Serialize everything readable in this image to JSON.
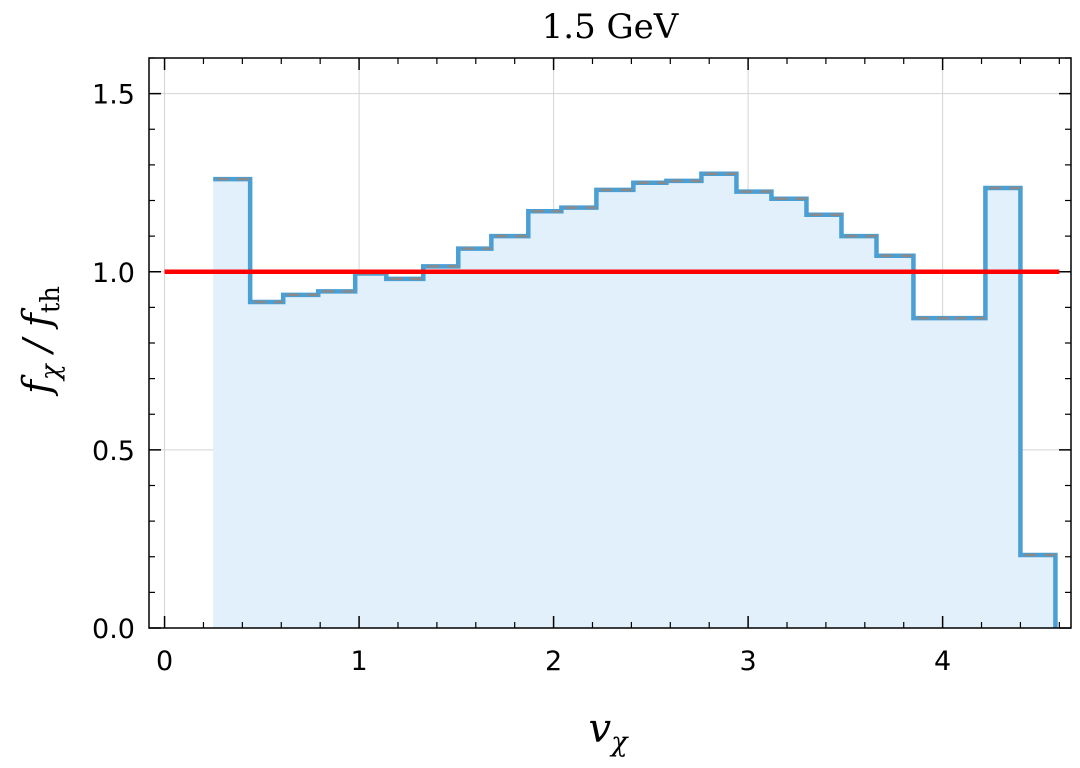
{
  "chart_data": {
    "type": "line",
    "title": "1.5 GeV",
    "xlabel": "v_χ",
    "ylabel": "f_χ / f_th",
    "xlim": [
      -0.08,
      4.66
    ],
    "ylim": [
      0.0,
      1.6
    ],
    "x_major_ticks": [
      0,
      1,
      2,
      3,
      4
    ],
    "y_major_ticks": [
      0.0,
      0.5,
      1.0,
      1.5
    ],
    "x_tick_labels": [
      "0",
      "1",
      "2",
      "3",
      "4"
    ],
    "y_tick_labels": [
      "0.0",
      "0.5",
      "1.0",
      "1.5"
    ],
    "grid": true,
    "legend": "none",
    "series": [
      {
        "kind": "step-histogram",
        "color": "#4a9fd4",
        "fill_color": "#e1f0fb",
        "dash_overlay_color": "#8a8a8a",
        "bin_edges": [
          0.25,
          0.44,
          0.61,
          0.79,
          0.98,
          1.14,
          1.33,
          1.51,
          1.68,
          1.87,
          2.04,
          2.22,
          2.41,
          2.58,
          2.76,
          2.94,
          3.12,
          3.3,
          3.48,
          3.66,
          3.85,
          4.04,
          4.22,
          4.4,
          4.58
        ],
        "values": [
          1.26,
          0.915,
          0.935,
          0.945,
          0.995,
          0.98,
          1.015,
          1.065,
          1.1,
          1.17,
          1.18,
          1.23,
          1.25,
          1.255,
          1.275,
          1.225,
          1.205,
          1.16,
          1.1,
          1.045,
          0.87,
          0.87,
          1.235,
          0.205
        ]
      },
      {
        "kind": "reference-line",
        "color": "#ff0000",
        "x": [
          0.0,
          4.6
        ],
        "y": [
          1.0,
          1.0
        ]
      }
    ]
  }
}
